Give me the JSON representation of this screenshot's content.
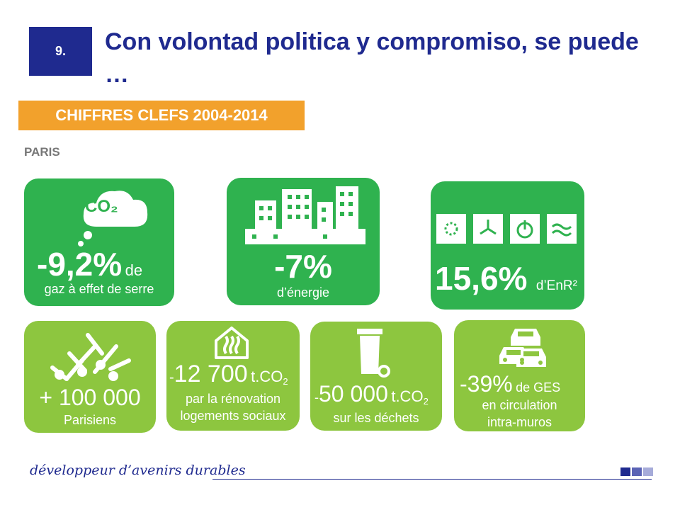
{
  "header": {
    "number": "9.",
    "title": "Con volontad politica y compromiso, se puede …"
  },
  "banner": "CHIFFRES CLEFS 2004-2014",
  "city": "PARIS",
  "cards": {
    "ghg": {
      "icon_text": "CO₂",
      "value": "-9,2%",
      "unit": "de",
      "label": "gaz à effet de serre"
    },
    "energy": {
      "value": "-7%",
      "label": "d’énergie"
    },
    "renewable": {
      "value": "15,6%",
      "label": "d’EnR²"
    },
    "population": {
      "value": "+ 100 000",
      "label": "Parisiens"
    },
    "renovation": {
      "prefix": "-",
      "value": "12 700",
      "unit": "t.CO",
      "unit_sub": "2",
      "label1": "par la rénovation",
      "label2": "logements sociaux"
    },
    "waste": {
      "prefix": "-",
      "value": "50 000",
      "unit": "t.CO",
      "unit_sub": "2",
      "label": "sur les déchets"
    },
    "traffic": {
      "value": "-39%",
      "unit": "de GES",
      "label1": "en circulation",
      "label2": "intra-muros"
    }
  },
  "footer": {
    "tagline": "développeur d’avenirs durables"
  },
  "colors": {
    "navy": "#1f2a8f",
    "orange": "#f2a12c",
    "green_dark": "#2fb24f",
    "green_light": "#8dc63f"
  }
}
